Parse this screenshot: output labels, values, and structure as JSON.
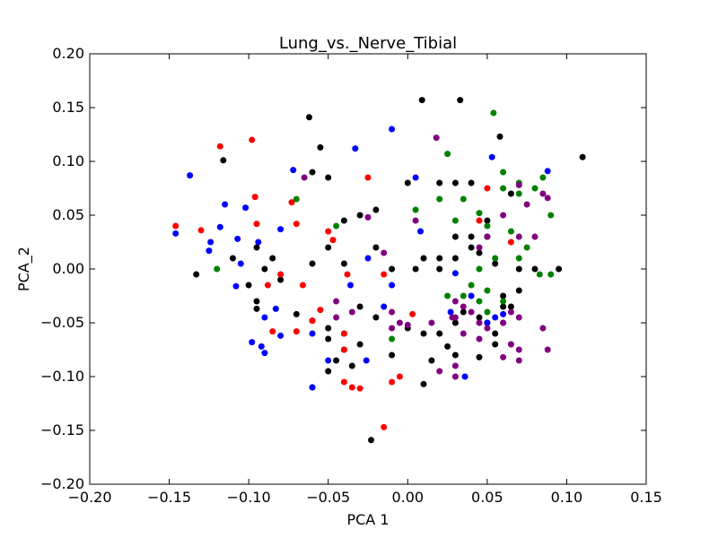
{
  "chart_data": {
    "type": "scatter",
    "title": "Lung_vs._Nerve_Tibial",
    "xlabel": "PCA 1",
    "ylabel": "PCA_2",
    "xlim": [
      -0.2,
      0.15
    ],
    "ylim": [
      -0.2,
      0.2
    ],
    "xticks": [
      -0.2,
      -0.15,
      -0.1,
      -0.05,
      0.0,
      0.05,
      0.1,
      0.15
    ],
    "yticks": [
      -0.2,
      -0.15,
      -0.1,
      -0.05,
      0.0,
      0.05,
      0.1,
      0.15,
      0.2
    ],
    "xtick_labels": [
      "−0.20",
      "−0.15",
      "−0.10",
      "−0.05",
      "0.00",
      "0.05",
      "0.10",
      "0.15"
    ],
    "ytick_labels": [
      "−0.20",
      "−0.15",
      "−0.10",
      "−0.05",
      "0.00",
      "0.05",
      "0.10",
      "0.15",
      "0.20"
    ],
    "grid": false,
    "legend": "none",
    "series": [
      {
        "color": "#000000",
        "points": [
          [
            0.009,
            0.157
          ],
          [
            0.033,
            0.157
          ],
          [
            -0.062,
            0.141
          ],
          [
            0.058,
            0.123
          ],
          [
            0.11,
            0.104
          ],
          [
            -0.116,
            0.101
          ],
          [
            -0.055,
            0.113
          ],
          [
            0.0,
            0.08
          ],
          [
            0.02,
            0.08
          ],
          [
            0.04,
            0.08
          ],
          [
            -0.06,
            0.09
          ],
          [
            -0.05,
            0.085
          ],
          [
            0.03,
            0.08
          ],
          [
            0.065,
            0.07
          ],
          [
            -0.03,
            0.05
          ],
          [
            -0.02,
            0.055
          ],
          [
            -0.04,
            0.045
          ],
          [
            0.05,
            0.045
          ],
          [
            0.03,
            0.03
          ],
          [
            0.04,
            0.03
          ],
          [
            -0.05,
            0.02
          ],
          [
            -0.02,
            0.02
          ],
          [
            0.01,
            0.01
          ],
          [
            0.02,
            0.01
          ],
          [
            -0.095,
            0.02
          ],
          [
            -0.085,
            0.01
          ],
          [
            -0.09,
            0.0
          ],
          [
            -0.06,
            0.005
          ],
          [
            -0.04,
            0.005
          ],
          [
            -0.01,
            0.0
          ],
          [
            0.03,
            0.01
          ],
          [
            -0.133,
            -0.005
          ],
          [
            -0.11,
            0.01
          ],
          [
            -0.1,
            -0.015
          ],
          [
            -0.08,
            -0.01
          ],
          [
            0.005,
            0.0
          ],
          [
            0.02,
            0.0
          ],
          [
            -0.095,
            -0.03
          ],
          [
            -0.095,
            -0.037
          ],
          [
            -0.07,
            -0.042
          ],
          [
            -0.06,
            -0.048
          ],
          [
            -0.05,
            -0.055
          ],
          [
            -0.03,
            -0.035
          ],
          [
            -0.02,
            -0.045
          ],
          [
            0.0,
            -0.055
          ],
          [
            0.02,
            -0.06
          ],
          [
            0.03,
            -0.05
          ],
          [
            0.035,
            -0.04
          ],
          [
            0.045,
            -0.045
          ],
          [
            0.05,
            -0.05
          ],
          [
            0.055,
            -0.06
          ],
          [
            0.06,
            -0.035
          ],
          [
            0.065,
            -0.035
          ],
          [
            0.07,
            -0.02
          ],
          [
            0.08,
            0.0
          ],
          [
            0.095,
            0.0
          ],
          [
            -0.05,
            -0.065
          ],
          [
            -0.04,
            -0.06
          ],
          [
            -0.03,
            -0.07
          ],
          [
            -0.01,
            -0.08
          ],
          [
            0.01,
            -0.06
          ],
          [
            0.015,
            -0.085
          ],
          [
            0.03,
            -0.08
          ],
          [
            0.045,
            -0.082
          ],
          [
            0.055,
            -0.07
          ],
          [
            -0.06,
            -0.11
          ],
          [
            -0.05,
            -0.095
          ],
          [
            -0.045,
            -0.085
          ],
          [
            -0.04,
            -0.075
          ],
          [
            -0.035,
            -0.09
          ],
          [
            0.01,
            -0.107
          ],
          [
            0.025,
            -0.072
          ],
          [
            -0.023,
            -0.159
          ],
          [
            0.05,
            0.03
          ],
          [
            0.07,
            0.0
          ],
          [
            0.045,
            0.015
          ],
          [
            0.06,
            -0.025
          ],
          [
            0.04,
            0.02
          ],
          [
            0.055,
            0.005
          ]
        ]
      },
      {
        "color": "#0000ff",
        "points": [
          [
            -0.137,
            0.087
          ],
          [
            -0.033,
            0.112
          ],
          [
            -0.01,
            0.13
          ],
          [
            0.053,
            0.104
          ],
          [
            0.088,
            0.091
          ],
          [
            -0.072,
            0.092
          ],
          [
            -0.115,
            0.06
          ],
          [
            -0.102,
            0.057
          ],
          [
            -0.118,
            0.039
          ],
          [
            -0.124,
            0.025
          ],
          [
            -0.125,
            0.017
          ],
          [
            -0.146,
            0.033
          ],
          [
            -0.107,
            0.028
          ],
          [
            -0.094,
            0.025
          ],
          [
            -0.08,
            0.037
          ],
          [
            -0.105,
            0.005
          ],
          [
            -0.108,
            -0.016
          ],
          [
            -0.09,
            -0.045
          ],
          [
            -0.083,
            -0.037
          ],
          [
            -0.08,
            -0.062
          ],
          [
            -0.098,
            -0.068
          ],
          [
            -0.092,
            -0.072
          ],
          [
            -0.09,
            -0.078
          ],
          [
            -0.06,
            -0.06
          ],
          [
            -0.05,
            -0.085
          ],
          [
            -0.026,
            -0.085
          ],
          [
            -0.036,
            -0.015
          ],
          [
            -0.025,
            0.01
          ],
          [
            -0.015,
            -0.035
          ],
          [
            -0.01,
            -0.015
          ],
          [
            0.005,
            0.085
          ],
          [
            0.008,
            0.035
          ],
          [
            0.027,
            -0.04
          ],
          [
            0.04,
            -0.025
          ],
          [
            0.05,
            -0.05
          ],
          [
            0.055,
            -0.045
          ],
          [
            0.06,
            -0.042
          ],
          [
            0.036,
            -0.1
          ],
          [
            -0.06,
            -0.11
          ],
          [
            0.03,
            -0.004
          ]
        ]
      },
      {
        "color": "#ff0000",
        "points": [
          [
            -0.118,
            0.114
          ],
          [
            -0.098,
            0.12
          ],
          [
            -0.146,
            0.04
          ],
          [
            -0.13,
            0.036
          ],
          [
            -0.096,
            0.067
          ],
          [
            -0.073,
            0.062
          ],
          [
            -0.095,
            0.042
          ],
          [
            -0.07,
            0.042
          ],
          [
            -0.08,
            -0.005
          ],
          [
            -0.088,
            -0.015
          ],
          [
            -0.066,
            -0.015
          ],
          [
            -0.05,
            0.035
          ],
          [
            -0.047,
            0.027
          ],
          [
            -0.038,
            -0.005
          ],
          [
            -0.06,
            -0.048
          ],
          [
            -0.055,
            -0.038
          ],
          [
            -0.04,
            -0.06
          ],
          [
            -0.07,
            -0.058
          ],
          [
            -0.085,
            -0.058
          ],
          [
            -0.04,
            -0.075
          ],
          [
            -0.04,
            -0.105
          ],
          [
            -0.035,
            -0.11
          ],
          [
            -0.025,
            0.085
          ],
          [
            -0.015,
            -0.005
          ],
          [
            0.003,
            -0.042
          ],
          [
            -0.005,
            -0.1
          ],
          [
            -0.01,
            -0.105
          ],
          [
            -0.015,
            -0.147
          ],
          [
            0.05,
            0.075
          ],
          [
            0.065,
            0.025
          ],
          [
            0.045,
            0.045
          ],
          [
            -0.03,
            -0.111
          ]
        ]
      },
      {
        "color": "#008000",
        "points": [
          [
            0.054,
            0.145
          ],
          [
            0.025,
            0.107
          ],
          [
            0.06,
            0.09
          ],
          [
            0.085,
            0.085
          ],
          [
            0.07,
            0.08
          ],
          [
            0.08,
            0.075
          ],
          [
            0.06,
            0.075
          ],
          [
            0.07,
            0.07
          ],
          [
            0.02,
            0.065
          ],
          [
            0.035,
            0.065
          ],
          [
            -0.07,
            0.065
          ],
          [
            0.045,
            0.052
          ],
          [
            0.09,
            0.05
          ],
          [
            0.03,
            0.045
          ],
          [
            0.005,
            0.055
          ],
          [
            -0.045,
            0.04
          ],
          [
            0.05,
            0.04
          ],
          [
            0.065,
            0.035
          ],
          [
            0.075,
            0.02
          ],
          [
            0.07,
            0.01
          ],
          [
            0.09,
            -0.005
          ],
          [
            0.083,
            -0.005
          ],
          [
            0.045,
            0.0
          ],
          [
            0.055,
            0.01
          ],
          [
            0.025,
            -0.025
          ],
          [
            0.04,
            -0.015
          ],
          [
            0.035,
            -0.025
          ],
          [
            0.045,
            -0.03
          ],
          [
            0.05,
            -0.02
          ],
          [
            0.06,
            -0.03
          ],
          [
            0.05,
            -0.04
          ],
          [
            0.06,
            -0.05
          ],
          [
            -0.01,
            -0.065
          ],
          [
            0.065,
            -0.07
          ],
          [
            -0.12,
            0.0
          ]
        ]
      },
      {
        "color": "#800080",
        "points": [
          [
            0.018,
            0.122
          ],
          [
            -0.065,
            0.085
          ],
          [
            0.07,
            0.078
          ],
          [
            0.085,
            0.07
          ],
          [
            0.088,
            0.066
          ],
          [
            0.075,
            0.06
          ],
          [
            -0.025,
            0.048
          ],
          [
            0.005,
            0.045
          ],
          [
            0.05,
            0.03
          ],
          [
            0.06,
            0.05
          ],
          [
            0.07,
            0.03
          ],
          [
            0.08,
            0.03
          ],
          [
            0.045,
            0.02
          ],
          [
            -0.015,
            0.015
          ],
          [
            -0.045,
            -0.03
          ],
          [
            -0.045,
            -0.045
          ],
          [
            -0.035,
            -0.04
          ],
          [
            -0.01,
            -0.04
          ],
          [
            -0.005,
            -0.05
          ],
          [
            -0.01,
            -0.055
          ],
          [
            0.0,
            -0.052
          ],
          [
            0.015,
            -0.05
          ],
          [
            0.03,
            -0.03
          ],
          [
            0.035,
            -0.035
          ],
          [
            0.03,
            -0.045
          ],
          [
            0.045,
            -0.05
          ],
          [
            0.05,
            -0.055
          ],
          [
            0.06,
            -0.05
          ],
          [
            0.065,
            -0.04
          ],
          [
            0.07,
            -0.045
          ],
          [
            0.035,
            -0.06
          ],
          [
            0.045,
            -0.065
          ],
          [
            0.065,
            -0.07
          ],
          [
            0.085,
            -0.055
          ],
          [
            0.07,
            -0.075
          ],
          [
            0.06,
            -0.082
          ],
          [
            0.07,
            -0.085
          ],
          [
            0.03,
            -0.09
          ],
          [
            0.02,
            -0.095
          ],
          [
            0.03,
            -0.1
          ],
          [
            0.088,
            -0.075
          ],
          [
            0.028,
            -0.045
          ],
          [
            0.04,
            -0.04
          ]
        ]
      }
    ]
  }
}
